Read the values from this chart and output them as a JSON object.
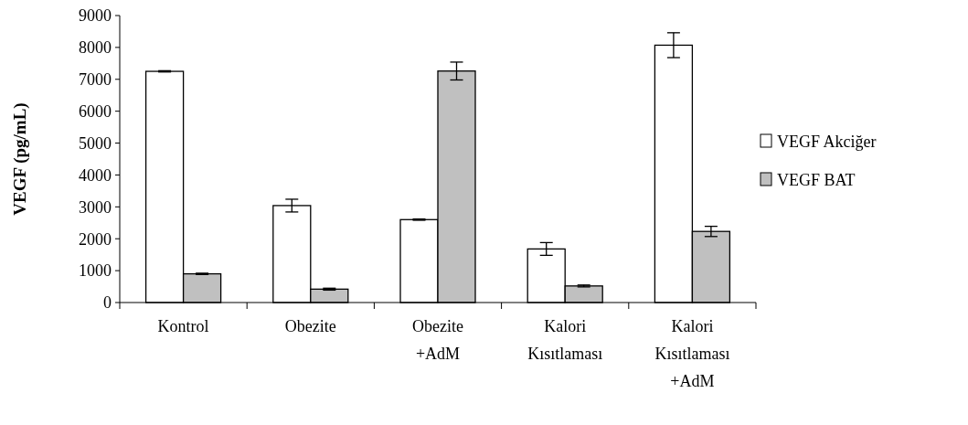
{
  "chart_data": {
    "type": "bar",
    "ylabel": "VEGF (pg/mL)",
    "categories": [
      "Kontrol",
      "Obezite",
      "Obezite\n+AdM",
      "Kalori\nKısıtlaması",
      "Kalori\nKısıtlaması\n+AdM"
    ],
    "ylim": [
      0,
      9000
    ],
    "yticks": [
      0,
      1000,
      2000,
      3000,
      4000,
      5000,
      6000,
      7000,
      8000,
      9000
    ],
    "grid": false,
    "legend": "right",
    "series": [
      {
        "name": "VEGF Akciğer",
        "color": "#ffffff",
        "values": [
          7250,
          3040,
          2600,
          1680,
          8070
        ],
        "errors": [
          20,
          200,
          20,
          200,
          390
        ]
      },
      {
        "name": "VEGF BAT",
        "color": "#c0c0c0",
        "values": [
          900,
          420,
          7260,
          520,
          2230
        ],
        "errors": [
          20,
          30,
          280,
          30,
          160
        ]
      }
    ]
  }
}
